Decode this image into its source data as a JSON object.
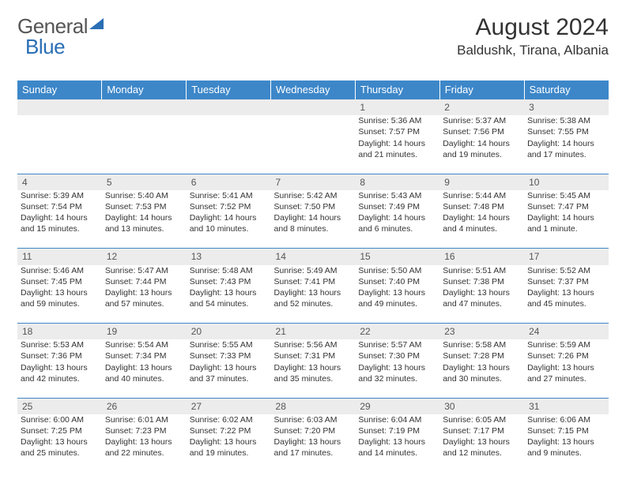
{
  "brand": {
    "part1": "General",
    "part2": "Blue"
  },
  "title": "August 2024",
  "location": "Baldushk, Tirana, Albania",
  "colors": {
    "header_bg": "#3d87c9",
    "header_text": "#ffffff",
    "daynum_bg": "#ececec",
    "border": "#3d87c9",
    "brand_gray": "#555555",
    "brand_blue": "#2a6fb5"
  },
  "weekdays": [
    "Sunday",
    "Monday",
    "Tuesday",
    "Wednesday",
    "Thursday",
    "Friday",
    "Saturday"
  ],
  "weeks": [
    [
      {
        "n": "",
        "t": ""
      },
      {
        "n": "",
        "t": ""
      },
      {
        "n": "",
        "t": ""
      },
      {
        "n": "",
        "t": ""
      },
      {
        "n": "1",
        "t": "Sunrise: 5:36 AM\nSunset: 7:57 PM\nDaylight: 14 hours and 21 minutes."
      },
      {
        "n": "2",
        "t": "Sunrise: 5:37 AM\nSunset: 7:56 PM\nDaylight: 14 hours and 19 minutes."
      },
      {
        "n": "3",
        "t": "Sunrise: 5:38 AM\nSunset: 7:55 PM\nDaylight: 14 hours and 17 minutes."
      }
    ],
    [
      {
        "n": "4",
        "t": "Sunrise: 5:39 AM\nSunset: 7:54 PM\nDaylight: 14 hours and 15 minutes."
      },
      {
        "n": "5",
        "t": "Sunrise: 5:40 AM\nSunset: 7:53 PM\nDaylight: 14 hours and 13 minutes."
      },
      {
        "n": "6",
        "t": "Sunrise: 5:41 AM\nSunset: 7:52 PM\nDaylight: 14 hours and 10 minutes."
      },
      {
        "n": "7",
        "t": "Sunrise: 5:42 AM\nSunset: 7:50 PM\nDaylight: 14 hours and 8 minutes."
      },
      {
        "n": "8",
        "t": "Sunrise: 5:43 AM\nSunset: 7:49 PM\nDaylight: 14 hours and 6 minutes."
      },
      {
        "n": "9",
        "t": "Sunrise: 5:44 AM\nSunset: 7:48 PM\nDaylight: 14 hours and 4 minutes."
      },
      {
        "n": "10",
        "t": "Sunrise: 5:45 AM\nSunset: 7:47 PM\nDaylight: 14 hours and 1 minute."
      }
    ],
    [
      {
        "n": "11",
        "t": "Sunrise: 5:46 AM\nSunset: 7:45 PM\nDaylight: 13 hours and 59 minutes."
      },
      {
        "n": "12",
        "t": "Sunrise: 5:47 AM\nSunset: 7:44 PM\nDaylight: 13 hours and 57 minutes."
      },
      {
        "n": "13",
        "t": "Sunrise: 5:48 AM\nSunset: 7:43 PM\nDaylight: 13 hours and 54 minutes."
      },
      {
        "n": "14",
        "t": "Sunrise: 5:49 AM\nSunset: 7:41 PM\nDaylight: 13 hours and 52 minutes."
      },
      {
        "n": "15",
        "t": "Sunrise: 5:50 AM\nSunset: 7:40 PM\nDaylight: 13 hours and 49 minutes."
      },
      {
        "n": "16",
        "t": "Sunrise: 5:51 AM\nSunset: 7:38 PM\nDaylight: 13 hours and 47 minutes."
      },
      {
        "n": "17",
        "t": "Sunrise: 5:52 AM\nSunset: 7:37 PM\nDaylight: 13 hours and 45 minutes."
      }
    ],
    [
      {
        "n": "18",
        "t": "Sunrise: 5:53 AM\nSunset: 7:36 PM\nDaylight: 13 hours and 42 minutes."
      },
      {
        "n": "19",
        "t": "Sunrise: 5:54 AM\nSunset: 7:34 PM\nDaylight: 13 hours and 40 minutes."
      },
      {
        "n": "20",
        "t": "Sunrise: 5:55 AM\nSunset: 7:33 PM\nDaylight: 13 hours and 37 minutes."
      },
      {
        "n": "21",
        "t": "Sunrise: 5:56 AM\nSunset: 7:31 PM\nDaylight: 13 hours and 35 minutes."
      },
      {
        "n": "22",
        "t": "Sunrise: 5:57 AM\nSunset: 7:30 PM\nDaylight: 13 hours and 32 minutes."
      },
      {
        "n": "23",
        "t": "Sunrise: 5:58 AM\nSunset: 7:28 PM\nDaylight: 13 hours and 30 minutes."
      },
      {
        "n": "24",
        "t": "Sunrise: 5:59 AM\nSunset: 7:26 PM\nDaylight: 13 hours and 27 minutes."
      }
    ],
    [
      {
        "n": "25",
        "t": "Sunrise: 6:00 AM\nSunset: 7:25 PM\nDaylight: 13 hours and 25 minutes."
      },
      {
        "n": "26",
        "t": "Sunrise: 6:01 AM\nSunset: 7:23 PM\nDaylight: 13 hours and 22 minutes."
      },
      {
        "n": "27",
        "t": "Sunrise: 6:02 AM\nSunset: 7:22 PM\nDaylight: 13 hours and 19 minutes."
      },
      {
        "n": "28",
        "t": "Sunrise: 6:03 AM\nSunset: 7:20 PM\nDaylight: 13 hours and 17 minutes."
      },
      {
        "n": "29",
        "t": "Sunrise: 6:04 AM\nSunset: 7:19 PM\nDaylight: 13 hours and 14 minutes."
      },
      {
        "n": "30",
        "t": "Sunrise: 6:05 AM\nSunset: 7:17 PM\nDaylight: 13 hours and 12 minutes."
      },
      {
        "n": "31",
        "t": "Sunrise: 6:06 AM\nSunset: 7:15 PM\nDaylight: 13 hours and 9 minutes."
      }
    ]
  ]
}
